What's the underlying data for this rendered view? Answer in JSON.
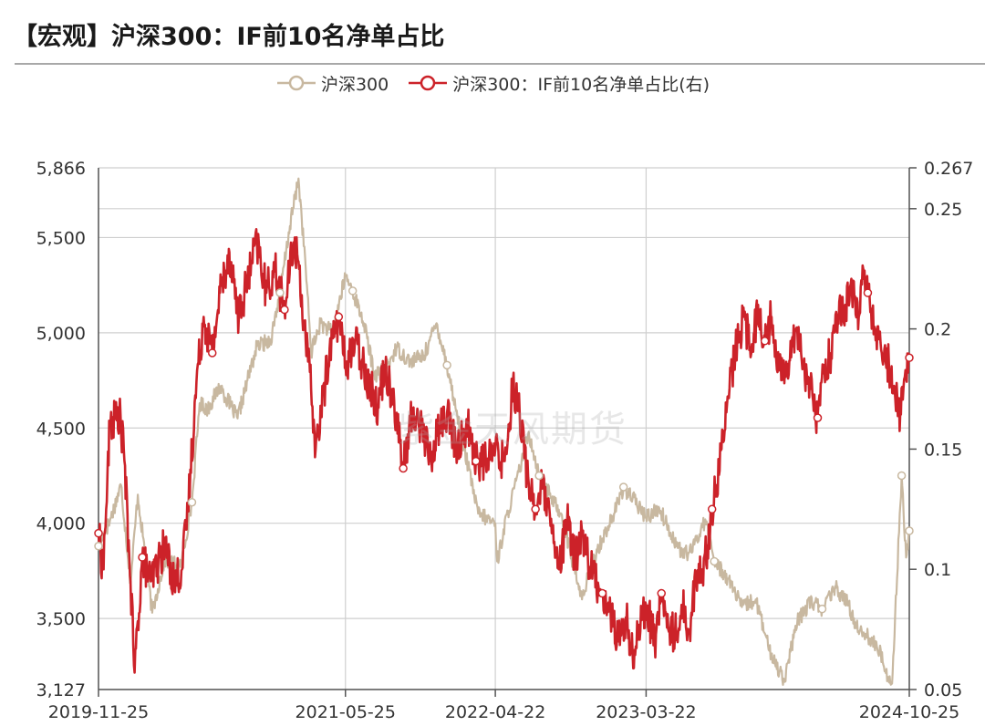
{
  "title": "【宏观】沪深300：IF前10名净单占比",
  "watermark": "紫金天风期货",
  "legend": [
    {
      "name": "沪深300",
      "color": "#c8b8a0"
    },
    {
      "name": "沪深300：IF前10名净单占比(右)",
      "color": "#cc2229"
    }
  ],
  "chart_data": {
    "type": "line",
    "title": "【宏观】沪深300：IF前10名净单占比",
    "legend_position": "top",
    "grid": true,
    "x_ticks": [
      "2019-11-25",
      "2021-05-25",
      "2022-04-22",
      "2023-03-22",
      "2024-10-25"
    ],
    "x_range": [
      "2019-11-25",
      "2024-10-25"
    ],
    "y_left": {
      "ticks": [
        "5,866",
        "5,500",
        "5,000",
        "4,500",
        "4,000",
        "3,500",
        "3,127"
      ],
      "range": [
        3127,
        5866
      ]
    },
    "y_right": {
      "ticks": [
        "0.267",
        "0.25",
        "0.2",
        "0.15",
        "0.1",
        "0.05"
      ],
      "range": [
        0.05,
        0.267
      ]
    },
    "series": [
      {
        "name": "沪深300",
        "axis": "left",
        "color": "#c8b8a0",
        "points": [
          [
            "2019-11-25",
            3880
          ],
          [
            "2019-12-20",
            4010
          ],
          [
            "2020-01-14",
            4200
          ],
          [
            "2020-02-04",
            3690
          ],
          [
            "2020-02-20",
            4150
          ],
          [
            "2020-03-23",
            3530
          ],
          [
            "2020-04-20",
            3810
          ],
          [
            "2020-05-25",
            3770
          ],
          [
            "2020-06-19",
            4110
          ],
          [
            "2020-07-06",
            4630
          ],
          [
            "2020-07-24",
            4600
          ],
          [
            "2020-08-20",
            4720
          ],
          [
            "2020-09-28",
            4550
          ],
          [
            "2020-10-20",
            4750
          ],
          [
            "2020-11-10",
            4930
          ],
          [
            "2020-12-10",
            4960
          ],
          [
            "2020-12-31",
            5210
          ],
          [
            "2021-01-22",
            5560
          ],
          [
            "2021-02-10",
            5810
          ],
          [
            "2021-02-26",
            5340
          ],
          [
            "2021-03-10",
            4900
          ],
          [
            "2021-03-31",
            5050
          ],
          [
            "2021-04-26",
            5000
          ],
          [
            "2021-05-25",
            5300
          ],
          [
            "2021-06-10",
            5220
          ],
          [
            "2021-07-05",
            5050
          ],
          [
            "2021-07-28",
            4780
          ],
          [
            "2021-08-20",
            4800
          ],
          [
            "2021-09-15",
            4920
          ],
          [
            "2021-10-15",
            4850
          ],
          [
            "2021-11-15",
            4880
          ],
          [
            "2021-12-13",
            5050
          ],
          [
            "2022-01-05",
            4830
          ],
          [
            "2022-01-28",
            4560
          ],
          [
            "2022-03-15",
            4050
          ],
          [
            "2022-04-22",
            4000
          ],
          [
            "2022-04-26",
            3800
          ],
          [
            "2022-05-20",
            4060
          ],
          [
            "2022-06-15",
            4280
          ],
          [
            "2022-07-05",
            4480
          ],
          [
            "2022-07-28",
            4250
          ],
          [
            "2022-08-20",
            4150
          ],
          [
            "2022-09-15",
            4050
          ],
          [
            "2022-10-12",
            3780
          ],
          [
            "2022-10-31",
            3600
          ],
          [
            "2022-11-20",
            3780
          ],
          [
            "2022-12-15",
            3920
          ],
          [
            "2023-01-10",
            4050
          ],
          [
            "2023-01-31",
            4190
          ],
          [
            "2023-02-20",
            4130
          ],
          [
            "2023-03-22",
            4030
          ],
          [
            "2023-04-20",
            4080
          ],
          [
            "2023-05-15",
            3950
          ],
          [
            "2023-06-10",
            3840
          ],
          [
            "2023-06-30",
            3850
          ],
          [
            "2023-07-31",
            4020
          ],
          [
            "2023-08-20",
            3800
          ],
          [
            "2023-09-20",
            3710
          ],
          [
            "2023-10-20",
            3560
          ],
          [
            "2023-11-20",
            3600
          ],
          [
            "2023-12-20",
            3330
          ],
          [
            "2024-01-22",
            3180
          ],
          [
            "2024-02-20",
            3480
          ],
          [
            "2024-03-20",
            3590
          ],
          [
            "2024-04-15",
            3550
          ],
          [
            "2024-05-15",
            3660
          ],
          [
            "2024-06-10",
            3580
          ],
          [
            "2024-06-30",
            3460
          ],
          [
            "2024-07-20",
            3420
          ],
          [
            "2024-08-20",
            3330
          ],
          [
            "2024-09-13",
            3160
          ],
          [
            "2024-09-18",
            3210
          ],
          [
            "2024-10-08",
            4250
          ],
          [
            "2024-10-18",
            3820
          ],
          [
            "2024-10-25",
            3960
          ]
        ]
      },
      {
        "name": "沪深300：IF前10名净单占比(右)",
        "axis": "right",
        "color": "#cc2229",
        "points": [
          [
            "2019-11-25",
            0.115
          ],
          [
            "2019-12-05",
            0.1
          ],
          [
            "2019-12-12",
            0.125
          ],
          [
            "2019-12-20",
            0.16
          ],
          [
            "2020-01-10",
            0.165
          ],
          [
            "2020-01-20",
            0.15
          ],
          [
            "2020-02-04",
            0.095
          ],
          [
            "2020-02-13",
            0.057
          ],
          [
            "2020-03-01",
            0.105
          ],
          [
            "2020-03-20",
            0.095
          ],
          [
            "2020-04-20",
            0.11
          ],
          [
            "2020-05-10",
            0.095
          ],
          [
            "2020-05-28",
            0.1
          ],
          [
            "2020-06-10",
            0.125
          ],
          [
            "2020-06-29",
            0.178
          ],
          [
            "2020-07-15",
            0.205
          ],
          [
            "2020-08-03",
            0.19
          ],
          [
            "2020-08-20",
            0.215
          ],
          [
            "2020-09-10",
            0.232
          ],
          [
            "2020-10-01",
            0.205
          ],
          [
            "2020-10-20",
            0.22
          ],
          [
            "2020-11-10",
            0.236
          ],
          [
            "2020-12-01",
            0.215
          ],
          [
            "2020-12-20",
            0.225
          ],
          [
            "2021-01-10",
            0.208
          ],
          [
            "2021-01-30",
            0.236
          ],
          [
            "2021-02-10",
            0.228
          ],
          [
            "2021-02-26",
            0.195
          ],
          [
            "2021-03-10",
            0.175
          ],
          [
            "2021-03-20",
            0.15
          ],
          [
            "2021-04-01",
            0.165
          ],
          [
            "2021-04-20",
            0.192
          ],
          [
            "2021-05-10",
            0.205
          ],
          [
            "2021-05-25",
            0.185
          ],
          [
            "2021-06-15",
            0.195
          ],
          [
            "2021-07-05",
            0.185
          ],
          [
            "2021-07-20",
            0.175
          ],
          [
            "2021-08-05",
            0.168
          ],
          [
            "2021-08-20",
            0.185
          ],
          [
            "2021-09-10",
            0.17
          ],
          [
            "2021-09-30",
            0.142
          ],
          [
            "2021-10-20",
            0.165
          ],
          [
            "2021-11-10",
            0.16
          ],
          [
            "2021-11-30",
            0.145
          ],
          [
            "2021-12-15",
            0.158
          ],
          [
            "2022-01-05",
            0.165
          ],
          [
            "2022-01-25",
            0.15
          ],
          [
            "2022-02-20",
            0.16
          ],
          [
            "2022-03-10",
            0.145
          ],
          [
            "2022-04-01",
            0.145
          ],
          [
            "2022-04-22",
            0.15
          ],
          [
            "2022-05-10",
            0.145
          ],
          [
            "2022-05-20",
            0.155
          ],
          [
            "2022-05-31",
            0.178
          ],
          [
            "2022-06-15",
            0.165
          ],
          [
            "2022-07-01",
            0.14
          ],
          [
            "2022-07-20",
            0.125
          ],
          [
            "2022-08-05",
            0.135
          ],
          [
            "2022-08-25",
            0.115
          ],
          [
            "2022-09-10",
            0.1
          ],
          [
            "2022-09-28",
            0.12
          ],
          [
            "2022-10-15",
            0.105
          ],
          [
            "2022-11-01",
            0.115
          ],
          [
            "2022-11-20",
            0.1
          ],
          [
            "2022-12-15",
            0.09
          ],
          [
            "2023-01-05",
            0.08
          ],
          [
            "2023-01-20",
            0.07
          ],
          [
            "2023-02-05",
            0.08
          ],
          [
            "2023-02-20",
            0.065
          ],
          [
            "2023-03-05",
            0.075
          ],
          [
            "2023-03-22",
            0.085
          ],
          [
            "2023-04-10",
            0.07
          ],
          [
            "2023-04-25",
            0.09
          ],
          [
            "2023-05-10",
            0.075
          ],
          [
            "2023-05-25",
            0.073
          ],
          [
            "2023-06-10",
            0.085
          ],
          [
            "2023-06-25",
            0.075
          ],
          [
            "2023-07-10",
            0.095
          ],
          [
            "2023-07-25",
            0.1
          ],
          [
            "2023-08-05",
            0.11
          ],
          [
            "2023-08-15",
            0.125
          ],
          [
            "2023-08-25",
            0.135
          ],
          [
            "2023-09-05",
            0.15
          ],
          [
            "2023-09-20",
            0.172
          ],
          [
            "2023-10-10",
            0.195
          ],
          [
            "2023-10-25",
            0.205
          ],
          [
            "2023-11-10",
            0.19
          ],
          [
            "2023-11-25",
            0.21
          ],
          [
            "2023-12-10",
            0.195
          ],
          [
            "2023-12-25",
            0.205
          ],
          [
            "2024-01-10",
            0.185
          ],
          [
            "2024-01-25",
            0.18
          ],
          [
            "2024-02-05",
            0.195
          ],
          [
            "2024-02-20",
            0.2
          ],
          [
            "2024-03-05",
            0.185
          ],
          [
            "2024-03-20",
            0.175
          ],
          [
            "2024-04-05",
            0.163
          ],
          [
            "2024-04-20",
            0.185
          ],
          [
            "2024-05-05",
            0.19
          ],
          [
            "2024-05-20",
            0.205
          ],
          [
            "2024-06-05",
            0.21
          ],
          [
            "2024-06-20",
            0.215
          ],
          [
            "2024-07-05",
            0.205
          ],
          [
            "2024-07-15",
            0.225
          ],
          [
            "2024-07-25",
            0.215
          ],
          [
            "2024-08-10",
            0.2
          ],
          [
            "2024-08-25",
            0.19
          ],
          [
            "2024-09-10",
            0.185
          ],
          [
            "2024-09-20",
            0.175
          ],
          [
            "2024-10-05",
            0.165
          ],
          [
            "2024-10-15",
            0.18
          ],
          [
            "2024-10-25",
            0.188
          ]
        ]
      }
    ]
  }
}
